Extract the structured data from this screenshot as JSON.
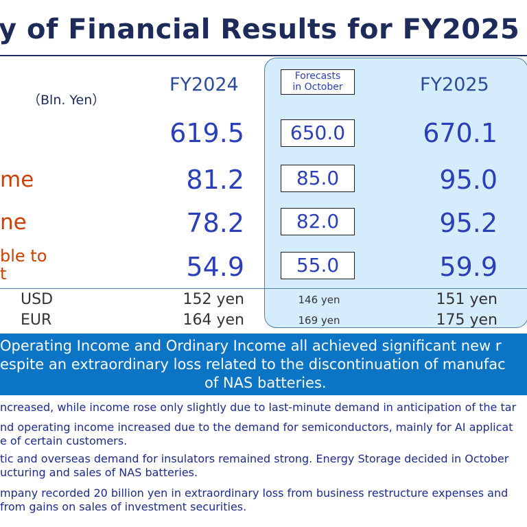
{
  "title": "y of Financial Results for FY2025",
  "header": {
    "unit": "（Bln. Yen）",
    "fy2024": "FY2024",
    "forecast": [
      "Forecasts",
      "in October"
    ],
    "fy2025": "FY2025"
  },
  "rows": [
    {
      "label": "",
      "fy2024": "619.5",
      "forecast": "650.0",
      "fy2025": "670.1"
    },
    {
      "label": "me",
      "fy2024": "81.2",
      "forecast": "85.0",
      "fy2025": "95.0"
    },
    {
      "label": "ne",
      "fy2024": "78.2",
      "forecast": "82.0",
      "fy2025": "95.2"
    },
    {
      "label_lines": [
        "ble to",
        "t"
      ],
      "fy2024": "54.9",
      "forecast": "55.0",
      "fy2025": "59.9"
    }
  ],
  "fx": [
    {
      "currency": "USD",
      "fy2024": "152 yen",
      "forecast": "146 yen",
      "fy2025": "151 yen"
    },
    {
      "currency": "EUR",
      "fy2024": "164 yen",
      "forecast": "169 yen",
      "fy2025": "175 yen"
    }
  ],
  "banner": [
    "Operating Income and Ordinary Income all achieved  significant new r",
    "espite an extraordinary loss related to the discontinuation of manufac",
    "of NAS batteries."
  ],
  "notes": [
    "ncreased, while income rose only slightly due to last-minute demand in anticipation of the tar",
    "nd operating income increased due to the demand for semiconductors, mainly for AI applicat",
    "e of certain customers.",
    "tic and overseas demand for insulators remained strong. Energy Storage decided in October",
    "ucturing and sales of NAS batteries.",
    "mpany recorded 20 billion yen in extraordinary loss from business restructure expenses and",
    "from gains on sales of investment securities."
  ],
  "colors": {
    "title": "#1c2b5a",
    "label": "#cc4000",
    "value": "#2b3fb8",
    "panel": "#d4ecfb",
    "banner": "#0b74c4",
    "notes": "#1c2b8c"
  }
}
